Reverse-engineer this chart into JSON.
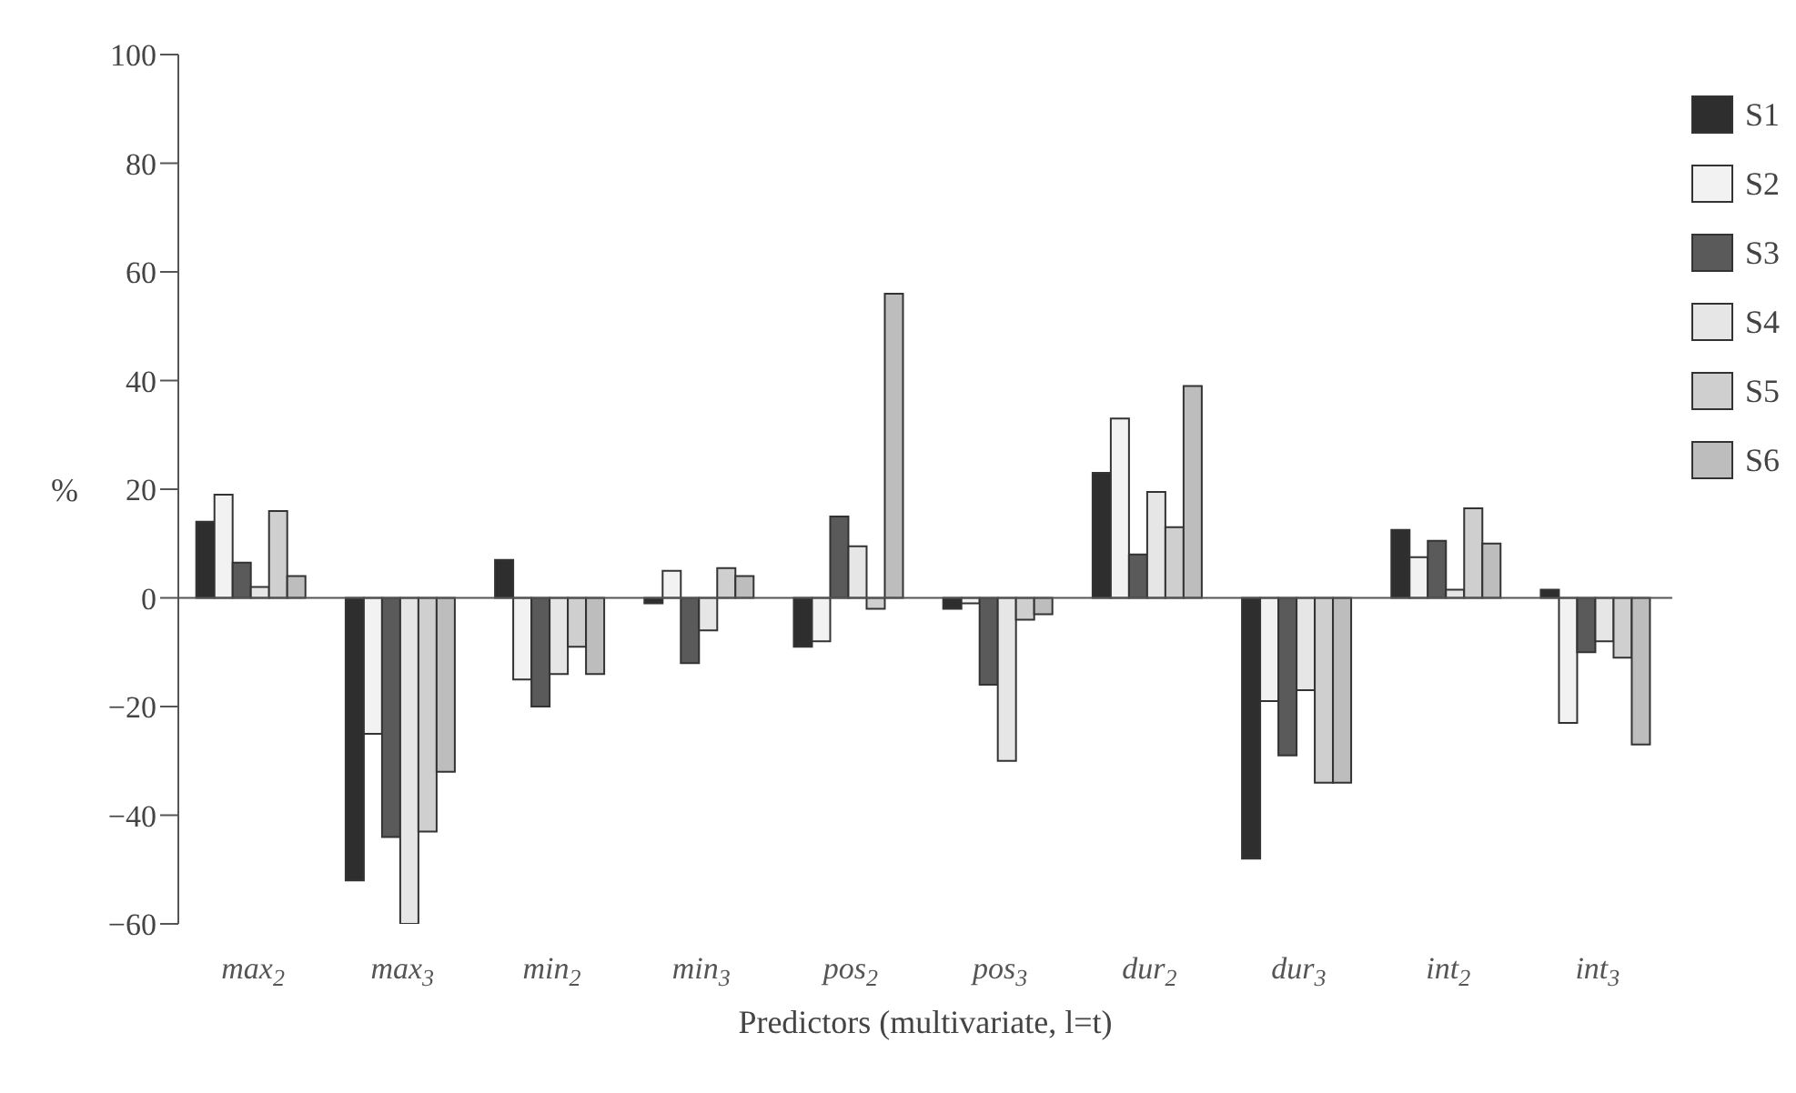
{
  "chart_data": {
    "type": "bar",
    "xlabel": "Predictors (multivariate, l=t)",
    "ylabel": "%",
    "categories": [
      "max$_{2}$",
      "max$_{3}$",
      "min$_{2}$",
      "min$_{3}$",
      "pos$_{2}$",
      "pos$_{3}$",
      "dur$_{2}$",
      "dur$_{3}$",
      "int$_{2}$",
      "int$_{3}$"
    ],
    "series": [
      {
        "name": "S1",
        "color": "#2e2e2e",
        "values": [
          14,
          -52,
          7,
          -1,
          -9,
          -2,
          23,
          -48,
          12.5,
          1.5
        ]
      },
      {
        "name": "S2",
        "color": "#f2f2f2",
        "values": [
          19,
          -25,
          -15,
          5,
          -8,
          -1,
          33,
          -19,
          7.5,
          -23
        ]
      },
      {
        "name": "S3",
        "color": "#5a5a5a",
        "values": [
          6.5,
          -44,
          -20,
          -12,
          15,
          -16,
          8,
          -29,
          10.5,
          -10
        ]
      },
      {
        "name": "S4",
        "color": "#e6e6e6",
        "values": [
          2,
          -60,
          -14,
          -6,
          9.5,
          -30,
          19.5,
          -17,
          1.5,
          -8
        ]
      },
      {
        "name": "S5",
        "color": "#cfcfcf",
        "values": [
          16,
          -43,
          -9,
          5.5,
          -2,
          -4,
          13,
          -34,
          16.5,
          -11
        ]
      },
      {
        "name": "S6",
        "color": "#bdbdbd",
        "values": [
          4,
          -32,
          -14,
          4,
          56,
          -3,
          39,
          -34,
          10,
          -27
        ]
      }
    ],
    "ylim": [
      -60,
      100
    ],
    "yticks": [
      -60,
      -40,
      -20,
      0,
      20,
      40,
      60,
      80,
      100
    ],
    "legend": "top right"
  }
}
